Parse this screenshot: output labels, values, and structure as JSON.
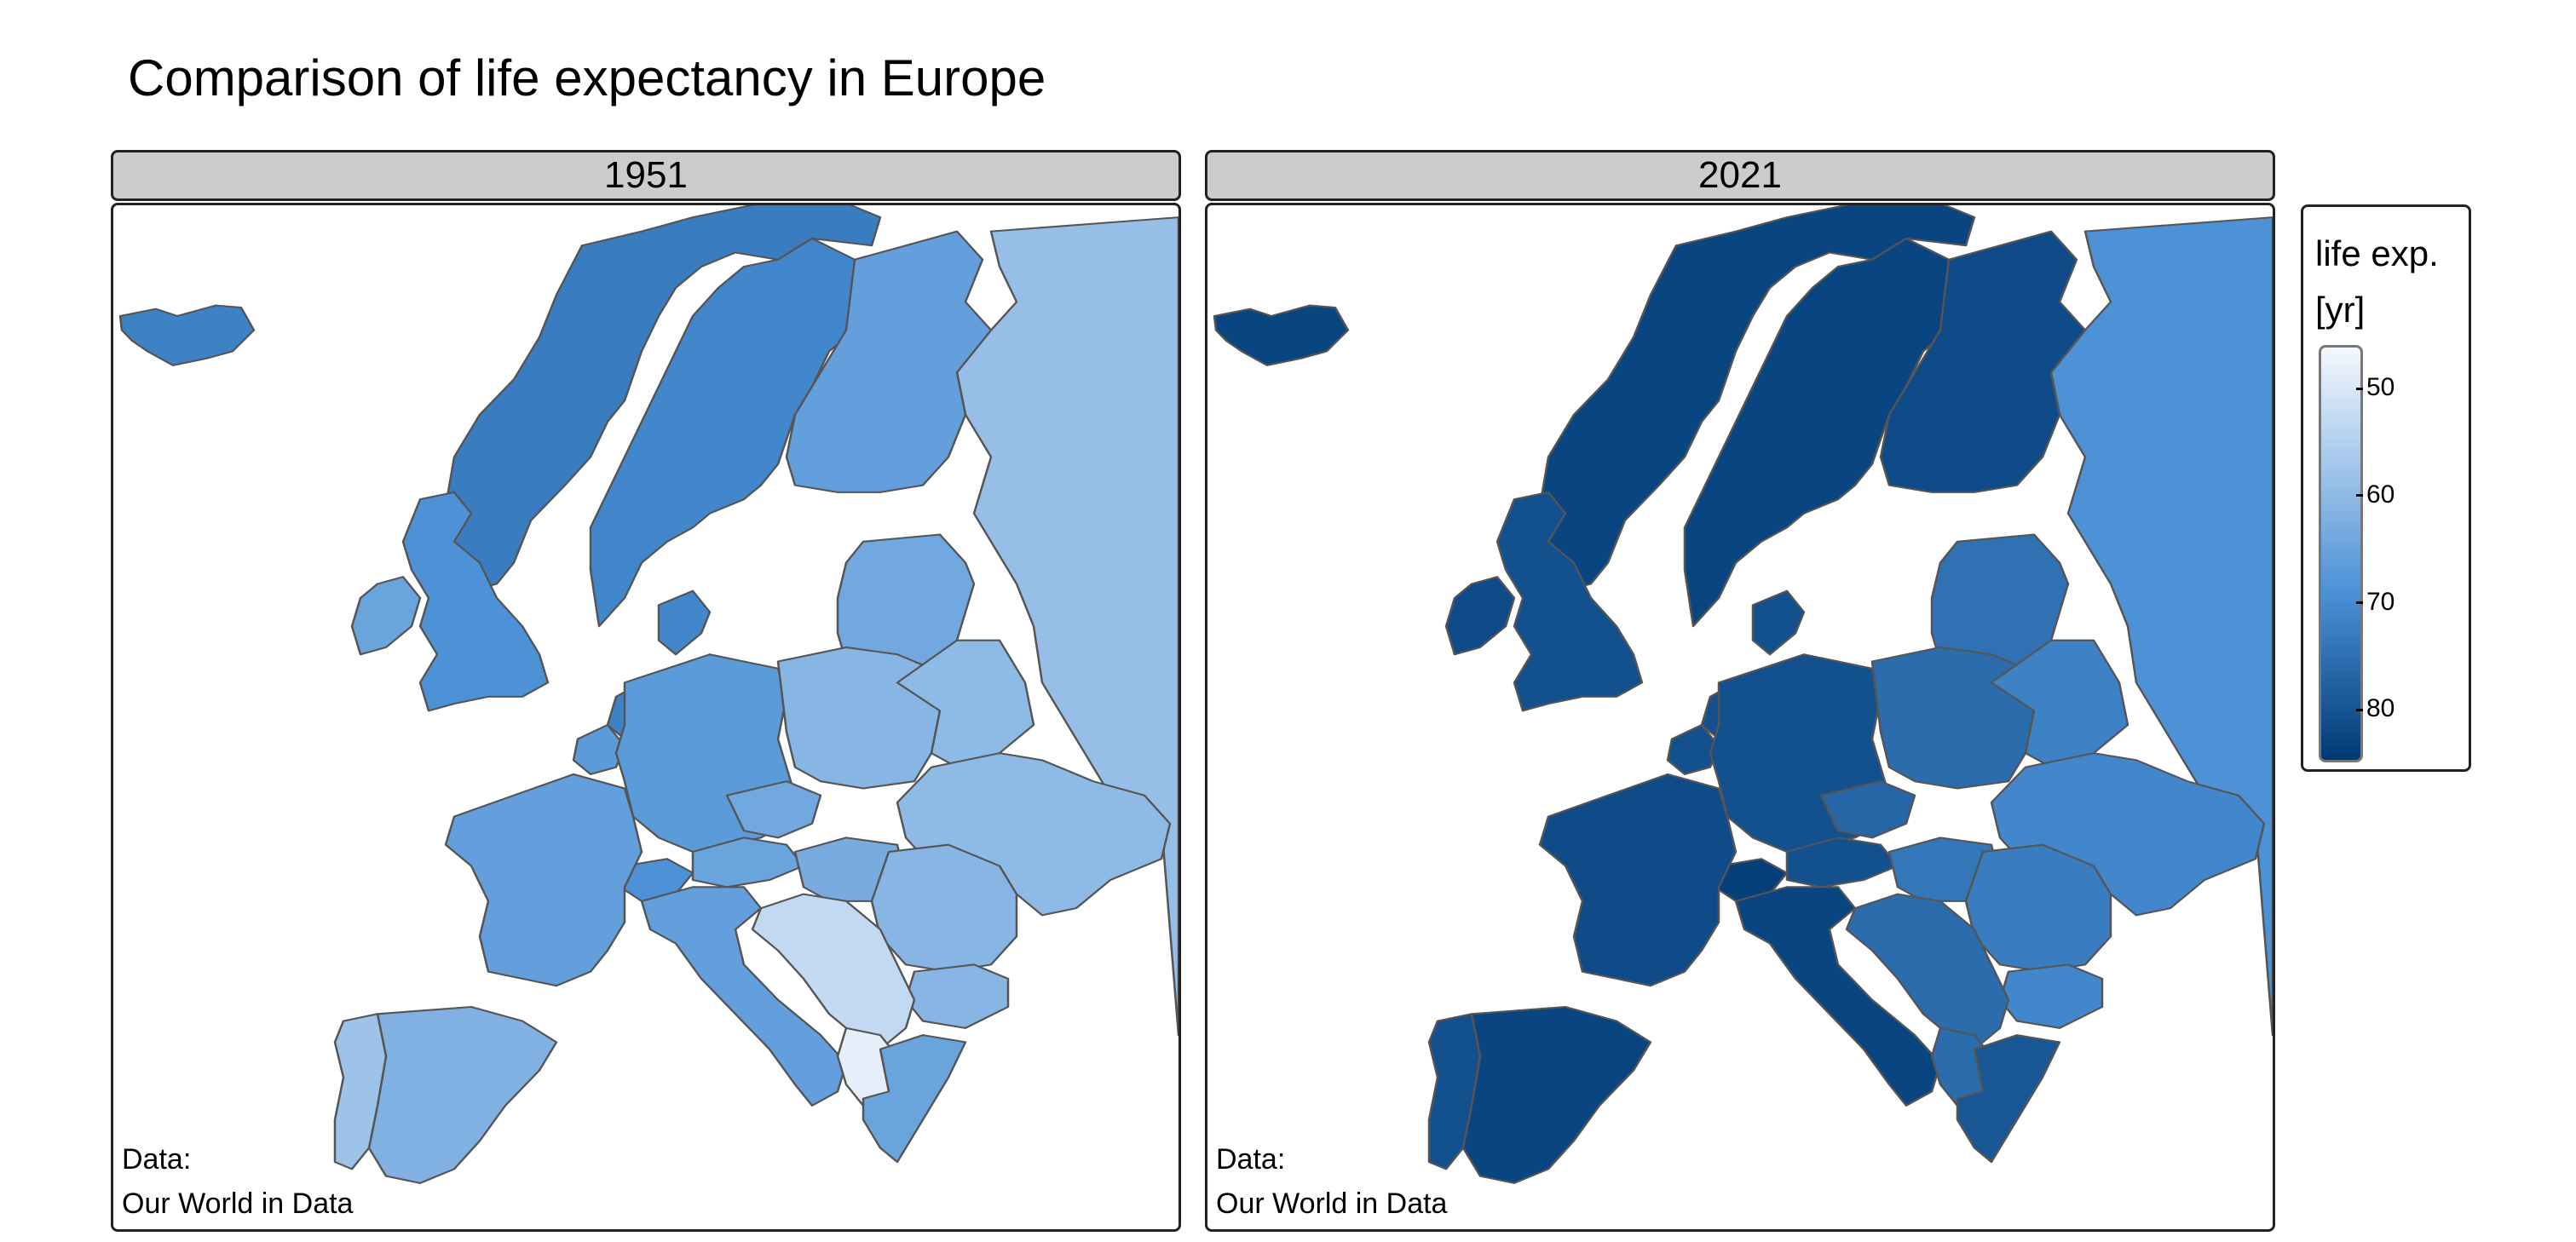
{
  "title": "Comparison of life expectancy in Europe",
  "panels": [
    {
      "label": "1951",
      "caption_line1": "Data:",
      "caption_line2": "Our World in Data"
    },
    {
      "label": "2021",
      "caption_line1": "Data:",
      "caption_line2": "Our World in Data"
    }
  ],
  "legend": {
    "title_line1": "life exp.",
    "title_line2": "[yr]",
    "ticks": [
      "50",
      "60",
      "70",
      "80"
    ],
    "tick_values": [
      50,
      60,
      70,
      80
    ],
    "range": [
      46,
      85
    ],
    "color_low": "#f4f8fd",
    "color_mid": "#4a90d6",
    "color_high": "#003a75"
  },
  "region_values": {
    "1951": {
      "iceland": 72,
      "norway": 73,
      "sweden": 71,
      "finland": 66,
      "russia": 59,
      "uk": 69,
      "ireland": 65,
      "netherlands": 72,
      "belgium": 67,
      "france": 66,
      "iberia_spain": 62,
      "portugal": 58,
      "germany": 67,
      "switzerland": 69,
      "austria": 65,
      "italy": 66,
      "poland": 61,
      "czechia": 64,
      "baltics": 64,
      "belarus": 60,
      "ukraine": 60,
      "hungary": 63,
      "romania": 61,
      "bulgaria": 61,
      "balkans": 53,
      "albania": 48,
      "greece": 65,
      "denmark": 71
    },
    "2021": {
      "iceland": 83,
      "norway": 83,
      "sweden": 83,
      "finland": 82,
      "russia": 69,
      "uk": 81,
      "ireland": 82,
      "netherlands": 81,
      "belgium": 81,
      "france": 82,
      "iberia_spain": 83,
      "portugal": 81,
      "germany": 81,
      "switzerland": 84,
      "austria": 81,
      "italy": 83,
      "poland": 76,
      "czechia": 77,
      "baltics": 75,
      "belarus": 72,
      "ukraine": 71,
      "hungary": 74,
      "romania": 73,
      "bulgaria": 71,
      "balkans": 76,
      "albania": 76,
      "greece": 80,
      "denmark": 81
    }
  }
}
